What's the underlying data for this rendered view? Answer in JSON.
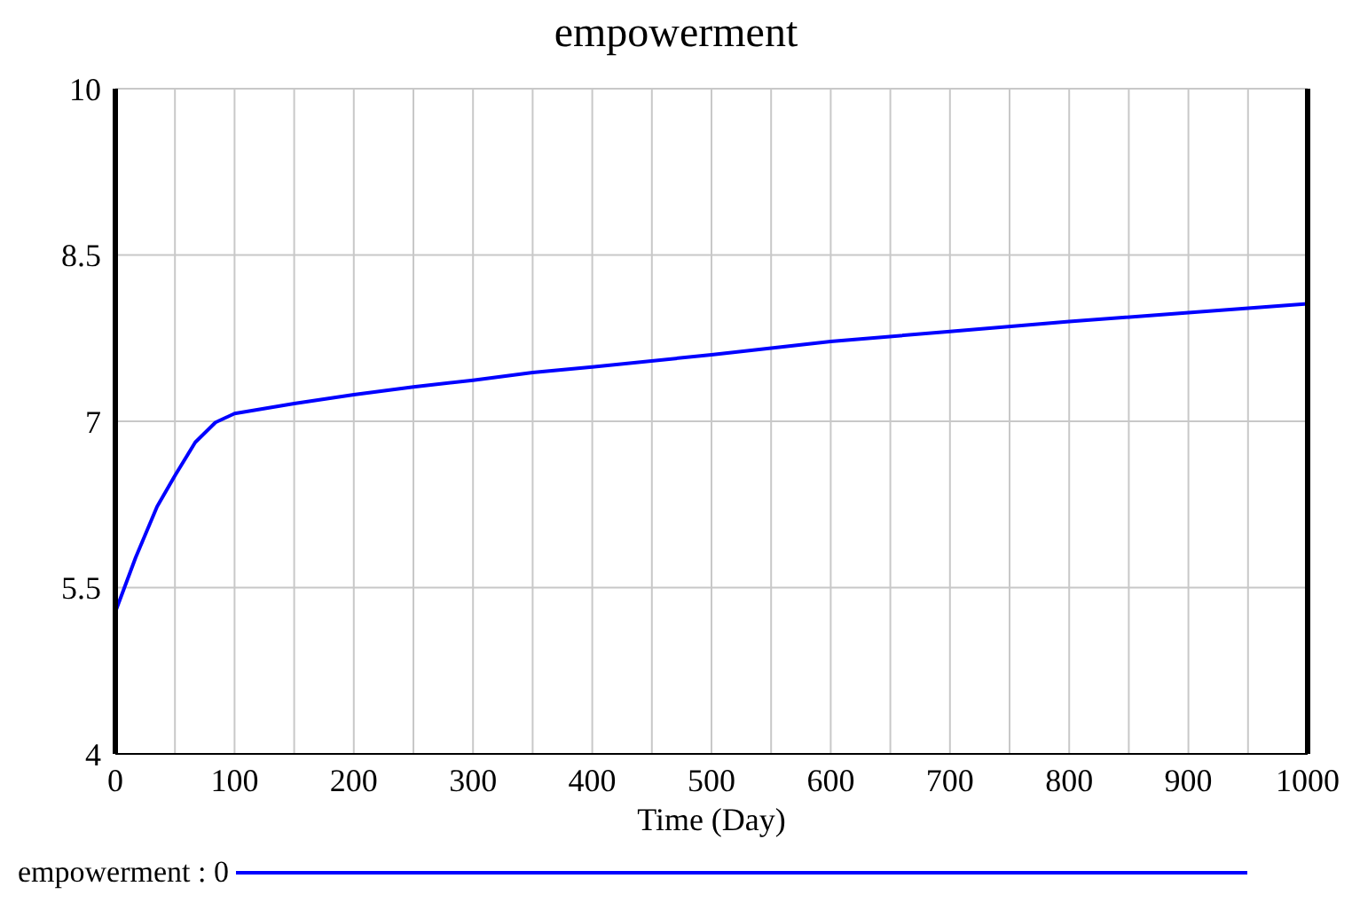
{
  "chart_data": {
    "type": "line",
    "title": "empowerment",
    "xlabel": "Time (Day)",
    "series": [
      {
        "name": "empowerment : 0",
        "color": "#0000ff",
        "x": [
          0,
          17,
          35,
          50,
          67,
          84,
          100,
          150,
          200,
          250,
          300,
          350,
          400,
          500,
          600,
          700,
          800,
          900,
          1000
        ],
        "values": [
          5.28,
          5.77,
          6.23,
          6.51,
          6.81,
          6.99,
          7.07,
          7.16,
          7.24,
          7.31,
          7.37,
          7.44,
          7.49,
          7.6,
          7.72,
          7.81,
          7.9,
          7.98,
          8.06
        ]
      }
    ],
    "xlim": [
      0,
      1000
    ],
    "ylim": [
      4,
      10
    ],
    "xticks": [
      0,
      {
        "value": 50,
        "label": null
      },
      100,
      {
        "value": 150,
        "label": null
      },
      200,
      {
        "value": 250,
        "label": null
      },
      300,
      {
        "value": 350,
        "label": null
      },
      400,
      {
        "value": 450,
        "label": null
      },
      500,
      {
        "value": 550,
        "label": null
      },
      600,
      {
        "value": 650,
        "label": null
      },
      700,
      {
        "value": 750,
        "label": null
      },
      800,
      {
        "value": 850,
        "label": null
      },
      900,
      {
        "value": 950,
        "label": null
      },
      1000
    ],
    "yticks": [
      4,
      5.5,
      7,
      8.5,
      10
    ],
    "grid": true,
    "legend": "bottom",
    "marker": "none",
    "line_style": "solid"
  }
}
